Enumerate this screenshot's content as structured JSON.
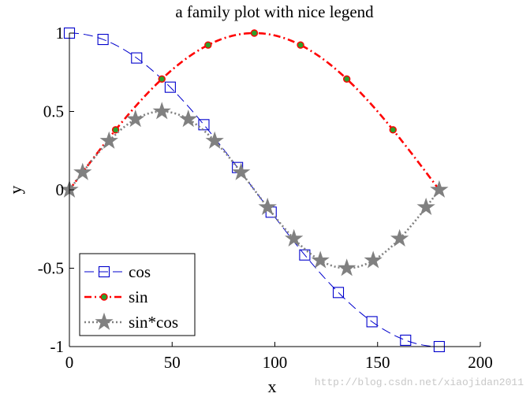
{
  "chart_data": {
    "type": "line",
    "title": "a family plot with nice legend",
    "xlabel": "x",
    "ylabel": "y",
    "xlim": [
      0,
      200
    ],
    "ylim": [
      -1,
      1
    ],
    "xticks": [
      0,
      50,
      100,
      150,
      200
    ],
    "yticks": [
      -1,
      -0.5,
      0,
      0.5,
      1
    ],
    "xtick_labels": [
      "0",
      "50",
      "100",
      "150",
      "200"
    ],
    "ytick_labels": [
      "-1",
      "-0.5",
      "0",
      "0.5",
      "1"
    ],
    "grid": false,
    "legend_position": "bottom-left",
    "series": [
      {
        "name": "cos",
        "color": "#0000cc",
        "line_style": "dashed",
        "marker": "square",
        "marker_x": [
          0,
          16.36,
          32.73,
          49.09,
          65.45,
          81.82,
          98.18,
          114.55,
          130.91,
          147.27,
          163.64,
          180
        ],
        "x": [
          0,
          10,
          20,
          30,
          40,
          50,
          60,
          70,
          80,
          90,
          100,
          110,
          120,
          130,
          140,
          150,
          160,
          170,
          180
        ],
        "y": [
          1,
          0.985,
          0.94,
          0.866,
          0.766,
          0.643,
          0.5,
          0.342,
          0.174,
          0,
          -0.174,
          -0.342,
          -0.5,
          -0.643,
          -0.766,
          -0.866,
          -0.94,
          -0.985,
          -1
        ]
      },
      {
        "name": "sin",
        "color": "#ff0000",
        "marker_color": "#2ca02c",
        "line_style": "dashdot",
        "marker": "circle",
        "marker_x": [
          0,
          22.5,
          45,
          67.5,
          90,
          112.5,
          135,
          157.5,
          180
        ],
        "x": [
          0,
          10,
          20,
          30,
          40,
          50,
          60,
          70,
          80,
          90,
          100,
          110,
          120,
          130,
          140,
          150,
          160,
          170,
          180
        ],
        "y": [
          0,
          0.174,
          0.342,
          0.5,
          0.643,
          0.766,
          0.866,
          0.94,
          0.985,
          1,
          0.985,
          0.94,
          0.866,
          0.766,
          0.643,
          0.5,
          0.342,
          0.174,
          0
        ]
      },
      {
        "name": "sin*cos",
        "color": "#808080",
        "line_style": "dotted",
        "marker": "star",
        "marker_x": [
          0,
          6.43,
          19.29,
          32.14,
          45,
          57.86,
          70.71,
          83.57,
          96.43,
          109.29,
          122.14,
          135,
          147.86,
          160.71,
          173.57,
          180
        ],
        "x": [
          0,
          10,
          20,
          30,
          40,
          50,
          60,
          70,
          80,
          90,
          100,
          110,
          120,
          130,
          140,
          150,
          160,
          170,
          180
        ],
        "y": [
          0,
          0.171,
          0.321,
          0.433,
          0.492,
          0.492,
          0.433,
          0.321,
          0.171,
          0,
          -0.171,
          -0.321,
          -0.433,
          -0.492,
          -0.492,
          -0.433,
          -0.321,
          -0.171,
          0
        ]
      }
    ]
  },
  "watermark": "http://blog.csdn.net/xiaojidan2011"
}
